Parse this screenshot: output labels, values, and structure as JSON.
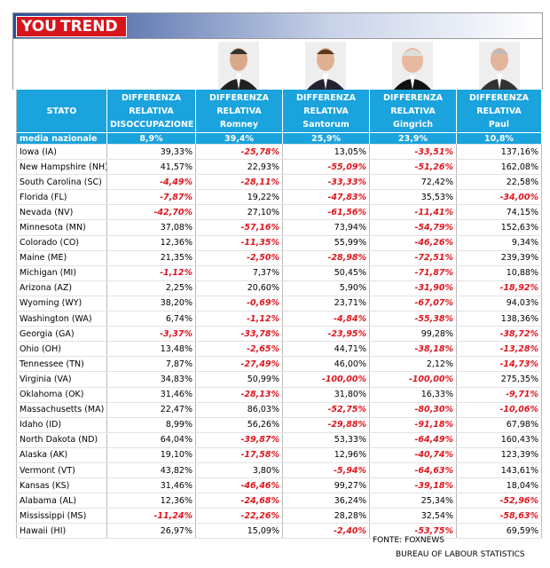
{
  "brand": {
    "part1": "YOU",
    "part2": "TREND"
  },
  "header": [
    [
      "STATO"
    ],
    [
      "DIFFERENZA",
      "RELATIVA",
      "DISOCCUPAZIONE"
    ],
    [
      "DIFFERENZA",
      "RELATIVA",
      "Romney"
    ],
    [
      "DIFFERENZA",
      "RELATIVA",
      "Santorum"
    ],
    [
      "DIFFERENZA",
      "RELATIVA",
      "Gingrich"
    ],
    [
      "DIFFERENZA",
      "RELATIVA",
      "Paul"
    ]
  ],
  "national": [
    "media nazionale",
    "8,9%",
    "39,4%",
    "25,9%",
    "23,9%",
    "10,8%"
  ],
  "rows": [
    [
      "Iowa (IA)",
      "39,33%",
      "-25,78%",
      "13,05%",
      "-33,51%",
      "137,16%"
    ],
    [
      "New Hampshire (NH)",
      "41,57%",
      "22,93%",
      "-55,09%",
      "-51,26%",
      "162,08%"
    ],
    [
      "South Carolina (SC)",
      "-4,49%",
      "-28,11%",
      "-33,33%",
      "72,42%",
      "22,58%"
    ],
    [
      "Florida (FL)",
      "-7,87%",
      "19,22%",
      "-47,83%",
      "35,53%",
      "-34,00%"
    ],
    [
      "Nevada (NV)",
      "-42,70%",
      "27,10%",
      "-61,56%",
      "-11,41%",
      "74,15%"
    ],
    [
      "Minnesota (MN)",
      "37,08%",
      "-57,16%",
      "73,94%",
      "-54,79%",
      "152,63%"
    ],
    [
      "Colorado (CO)",
      "12,36%",
      "-11,35%",
      "55,99%",
      "-46,26%",
      "9,34%"
    ],
    [
      "Maine (ME)",
      "21,35%",
      "-2,50%",
      "-28,98%",
      "-72,51%",
      "239,39%"
    ],
    [
      "Michigan (MI)",
      "-1,12%",
      "7,37%",
      "50,45%",
      "-71,87%",
      "10,88%"
    ],
    [
      "Arizona (AZ)",
      "2,25%",
      "20,60%",
      "5,90%",
      "-31,90%",
      "-18,92%"
    ],
    [
      "Wyoming (WY)",
      "38,20%",
      "-0,69%",
      "23,71%",
      "-67,07%",
      "94,03%"
    ],
    [
      "Washington (WA)",
      "6,74%",
      "-1,12%",
      "-4,84%",
      "-55,38%",
      "138,36%"
    ],
    [
      "Georgia (GA)",
      "-3,37%",
      "-33,78%",
      "-23,95%",
      "99,28%",
      "-38,72%"
    ],
    [
      "Ohio (OH)",
      "13,48%",
      "-2,65%",
      "44,71%",
      "-38,18%",
      "-13,28%"
    ],
    [
      "Tennessee (TN)",
      "7,87%",
      "-27,49%",
      "46,00%",
      "2,12%",
      "-14,73%"
    ],
    [
      "Virginia (VA)",
      "34,83%",
      "50,99%",
      "-100,00%",
      "-100,00%",
      "275,35%"
    ],
    [
      "Oklahoma (OK)",
      "31,46%",
      "-28,13%",
      "31,80%",
      "16,33%",
      "-9,71%"
    ],
    [
      "Massachusetts (MA)",
      "22,47%",
      "86,03%",
      "-52,75%",
      "-80,30%",
      "-10,06%"
    ],
    [
      "Idaho (ID)",
      "8,99%",
      "56,26%",
      "-29,88%",
      "-91,18%",
      "67,98%"
    ],
    [
      "North Dakota (ND)",
      "64,04%",
      "-39,87%",
      "53,33%",
      "-64,49%",
      "160,43%"
    ],
    [
      "Alaska (AK)",
      "19,10%",
      "-17,58%",
      "12,96%",
      "-40,74%",
      "123,39%"
    ],
    [
      "Vermont (VT)",
      "43,82%",
      "3,80%",
      "-5,94%",
      "-64,63%",
      "143,61%"
    ],
    [
      "Kansas (KS)",
      "31,46%",
      "-46,46%",
      "99,27%",
      "-39,18%",
      "18,04%"
    ],
    [
      "Alabama (AL)",
      "12,36%",
      "-24,68%",
      "36,24%",
      "25,34%",
      "-52,96%"
    ],
    [
      "Mississippi (MS)",
      "-11,24%",
      "-22,26%",
      "28,28%",
      "32,54%",
      "-58,63%"
    ],
    [
      "Hawaii (HI)",
      "26,97%",
      "15,09%",
      "-2,40%",
      "-53,75%",
      "69,59%"
    ]
  ],
  "sources": [
    "FONTE: FOXNEWS",
    "BUREAU OF LABOUR STATISTICS"
  ]
}
